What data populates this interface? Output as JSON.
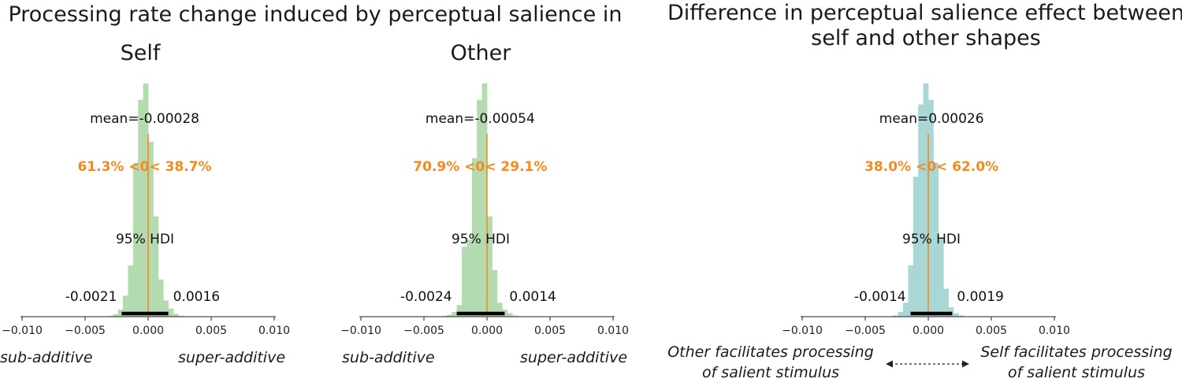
{
  "left_title": "Processing rate change induced by perceptual salience in",
  "right_title_line1": "Difference in perceptual salience effect between",
  "right_title_line2": "self and other shapes",
  "captions": {
    "sub_additive": "sub-additive",
    "super_additive": "super-additive",
    "other_facilitates_line1": "Other facilitates processing",
    "other_facilitates_line2": "of salient stimulus",
    "self_facilitates_line1": "Self facilitates processing",
    "self_facilitates_line2": "of salient stimulus"
  },
  "colors": {
    "green": "#b4dbaf",
    "teal": "#a9d7d6",
    "orange": "#f28a1e",
    "hdi": "#000000"
  },
  "chart_data": [
    {
      "type": "histogram",
      "subtitle": "Self",
      "color": "#b4dbaf",
      "xlim": [
        -0.01,
        0.01
      ],
      "xticks": [
        "−0.010",
        "−0.005",
        "0.000",
        "0.005",
        "0.010"
      ],
      "bins": [
        [
          -0.0032,
          -0.0028,
          0.003
        ],
        [
          -0.0028,
          -0.0024,
          0.01
        ],
        [
          -0.0024,
          -0.002,
          0.03
        ],
        [
          -0.002,
          -0.0016,
          0.09
        ],
        [
          -0.0016,
          -0.0012,
          0.22
        ],
        [
          -0.0012,
          -0.0008,
          0.66
        ],
        [
          -0.0008,
          -0.0004,
          0.93
        ],
        [
          -0.0004,
          0.0,
          1.0
        ],
        [
          0.0,
          0.0004,
          0.75
        ],
        [
          0.0004,
          0.0008,
          0.43
        ],
        [
          0.0008,
          0.0012,
          0.16
        ],
        [
          0.0012,
          0.0016,
          0.07
        ],
        [
          0.0016,
          0.002,
          0.035
        ],
        [
          0.002,
          0.0024,
          0.012
        ],
        [
          0.0024,
          0.0028,
          0.004
        ]
      ],
      "mean_label": "mean=-0.00028",
      "mean": -0.00028,
      "percent_label": "61.3% <0< 38.7%",
      "hdi_label": "95% HDI",
      "hdi": [
        -0.0021,
        0.0016
      ],
      "hdi_low_label": "-0.0021",
      "hdi_high_label": "0.0016"
    },
    {
      "type": "histogram",
      "subtitle": "Other",
      "color": "#b4dbaf",
      "xlim": [
        -0.01,
        0.01
      ],
      "xticks": [
        "−0.010",
        "−0.005",
        "0.000",
        "0.005",
        "0.010"
      ],
      "bins": [
        [
          -0.0036,
          -0.0032,
          0.003
        ],
        [
          -0.0032,
          -0.0028,
          0.008
        ],
        [
          -0.0028,
          -0.0024,
          0.02
        ],
        [
          -0.0024,
          -0.002,
          0.05
        ],
        [
          -0.002,
          -0.0016,
          0.3
        ],
        [
          -0.0016,
          -0.0012,
          0.33
        ],
        [
          -0.0012,
          -0.0008,
          0.68
        ],
        [
          -0.0008,
          -0.0004,
          0.93
        ],
        [
          -0.0004,
          0.0,
          1.0
        ],
        [
          0.0,
          0.0004,
          0.43
        ],
        [
          0.0004,
          0.0008,
          0.2
        ],
        [
          0.0008,
          0.0012,
          0.06
        ],
        [
          0.0012,
          0.0016,
          0.03
        ],
        [
          0.0016,
          0.002,
          0.015
        ],
        [
          0.002,
          0.0024,
          0.005
        ]
      ],
      "mean_label": "mean=-0.00054",
      "mean": -0.00054,
      "percent_label": "70.9% <0< 29.1%",
      "hdi_label": "95% HDI",
      "hdi": [
        -0.0024,
        0.0014
      ],
      "hdi_low_label": "-0.0024",
      "hdi_high_label": "0.0014"
    },
    {
      "type": "histogram",
      "color": "#a9d7d6",
      "xlim": [
        -0.01,
        0.01
      ],
      "xticks": [
        "−0.010",
        "−0.005",
        "0.000",
        "0.005",
        "0.010"
      ],
      "bins": [
        [
          -0.0028,
          -0.0024,
          0.005
        ],
        [
          -0.0024,
          -0.002,
          0.02
        ],
        [
          -0.002,
          -0.0016,
          0.06
        ],
        [
          -0.0016,
          -0.0012,
          0.22
        ],
        [
          -0.0012,
          -0.0008,
          0.6
        ],
        [
          -0.0008,
          -0.0004,
          0.91
        ],
        [
          -0.0004,
          0.0,
          1.0
        ],
        [
          0.0,
          0.0004,
          0.93
        ],
        [
          0.0004,
          0.0008,
          0.66
        ],
        [
          0.0008,
          0.0012,
          0.34
        ],
        [
          0.0012,
          0.0016,
          0.12
        ],
        [
          0.0016,
          0.002,
          0.04
        ],
        [
          0.002,
          0.0024,
          0.015
        ],
        [
          0.0024,
          0.0028,
          0.005
        ]
      ],
      "mean_label": "mean=0.00026",
      "mean": 0.00026,
      "percent_label": "38.0% <0< 62.0%",
      "hdi_label": "95% HDI",
      "hdi": [
        -0.0014,
        0.0019
      ],
      "hdi_low_label": "-0.0014",
      "hdi_high_label": "0.0019"
    }
  ]
}
